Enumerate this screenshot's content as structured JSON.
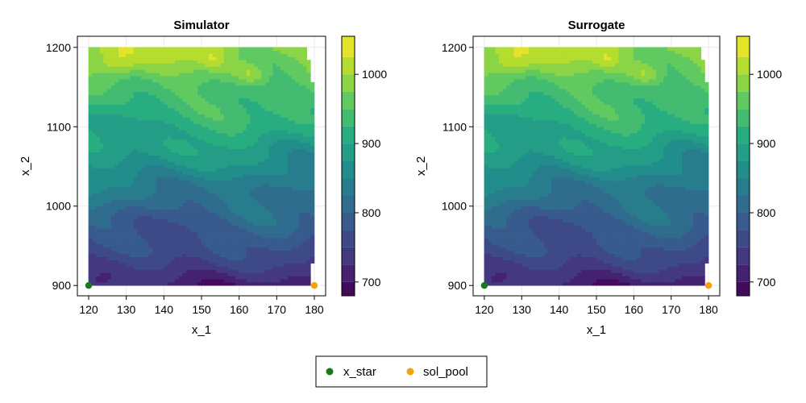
{
  "chart_data": [
    {
      "type": "contour",
      "title": "Simulator",
      "xlabel": "x_1",
      "ylabel": "x_2",
      "xlim": [
        117,
        183
      ],
      "ylim": [
        887,
        1214
      ],
      "xticks": [
        "120",
        "130",
        "140",
        "150",
        "160",
        "170",
        "180"
      ],
      "yticks": [
        "900",
        "1000",
        "1100",
        "1200"
      ],
      "z_min": 680,
      "z_max": 1055,
      "grid": true,
      "colorbar": {
        "range": [
          680,
          1055
        ],
        "levels": [
          680,
          700,
          725,
          750,
          775,
          800,
          825,
          850,
          875,
          900,
          925,
          950,
          975,
          1000,
          1025,
          1055
        ],
        "ticks": [
          "700",
          "800",
          "900",
          "1000"
        ]
      },
      "series": [
        {
          "name": "x_star",
          "x": [
            120
          ],
          "y": [
            900
          ],
          "color": "#1a7a1a"
        },
        {
          "name": "sol_pool",
          "x": [
            180
          ],
          "y": [
            900
          ],
          "color": "#f5a20a"
        }
      ]
    },
    {
      "type": "contour",
      "title": "Surrogate",
      "xlabel": "x_1",
      "ylabel": "x_2",
      "xlim": [
        117,
        183
      ],
      "ylim": [
        887,
        1214
      ],
      "xticks": [
        "120",
        "130",
        "140",
        "150",
        "160",
        "170",
        "180"
      ],
      "yticks": [
        "900",
        "1000",
        "1100",
        "1200"
      ],
      "z_min": 680,
      "z_max": 1055,
      "grid": true,
      "colorbar": {
        "range": [
          680,
          1055
        ],
        "levels": [
          680,
          700,
          725,
          750,
          775,
          800,
          825,
          850,
          875,
          900,
          925,
          950,
          975,
          1000,
          1025,
          1055
        ],
        "ticks": [
          "700",
          "800",
          "900",
          "1000"
        ]
      },
      "series": [
        {
          "name": "x_star",
          "x": [
            120
          ],
          "y": [
            900
          ],
          "color": "#1a7a1a"
        },
        {
          "name": "sol_pool",
          "x": [
            180
          ],
          "y": [
            900
          ],
          "color": "#f5a20a"
        }
      ]
    }
  ],
  "legend": {
    "placement": "bottom-center",
    "items": [
      {
        "label": "x_star",
        "color": "#1a7a1a"
      },
      {
        "label": "sol_pool",
        "color": "#f5a20a"
      }
    ]
  },
  "colormap": [
    "#440154",
    "#46307e",
    "#3b528b",
    "#2c728e",
    "#21918c",
    "#28ae80",
    "#5ec962",
    "#addc30",
    "#fde725"
  ]
}
